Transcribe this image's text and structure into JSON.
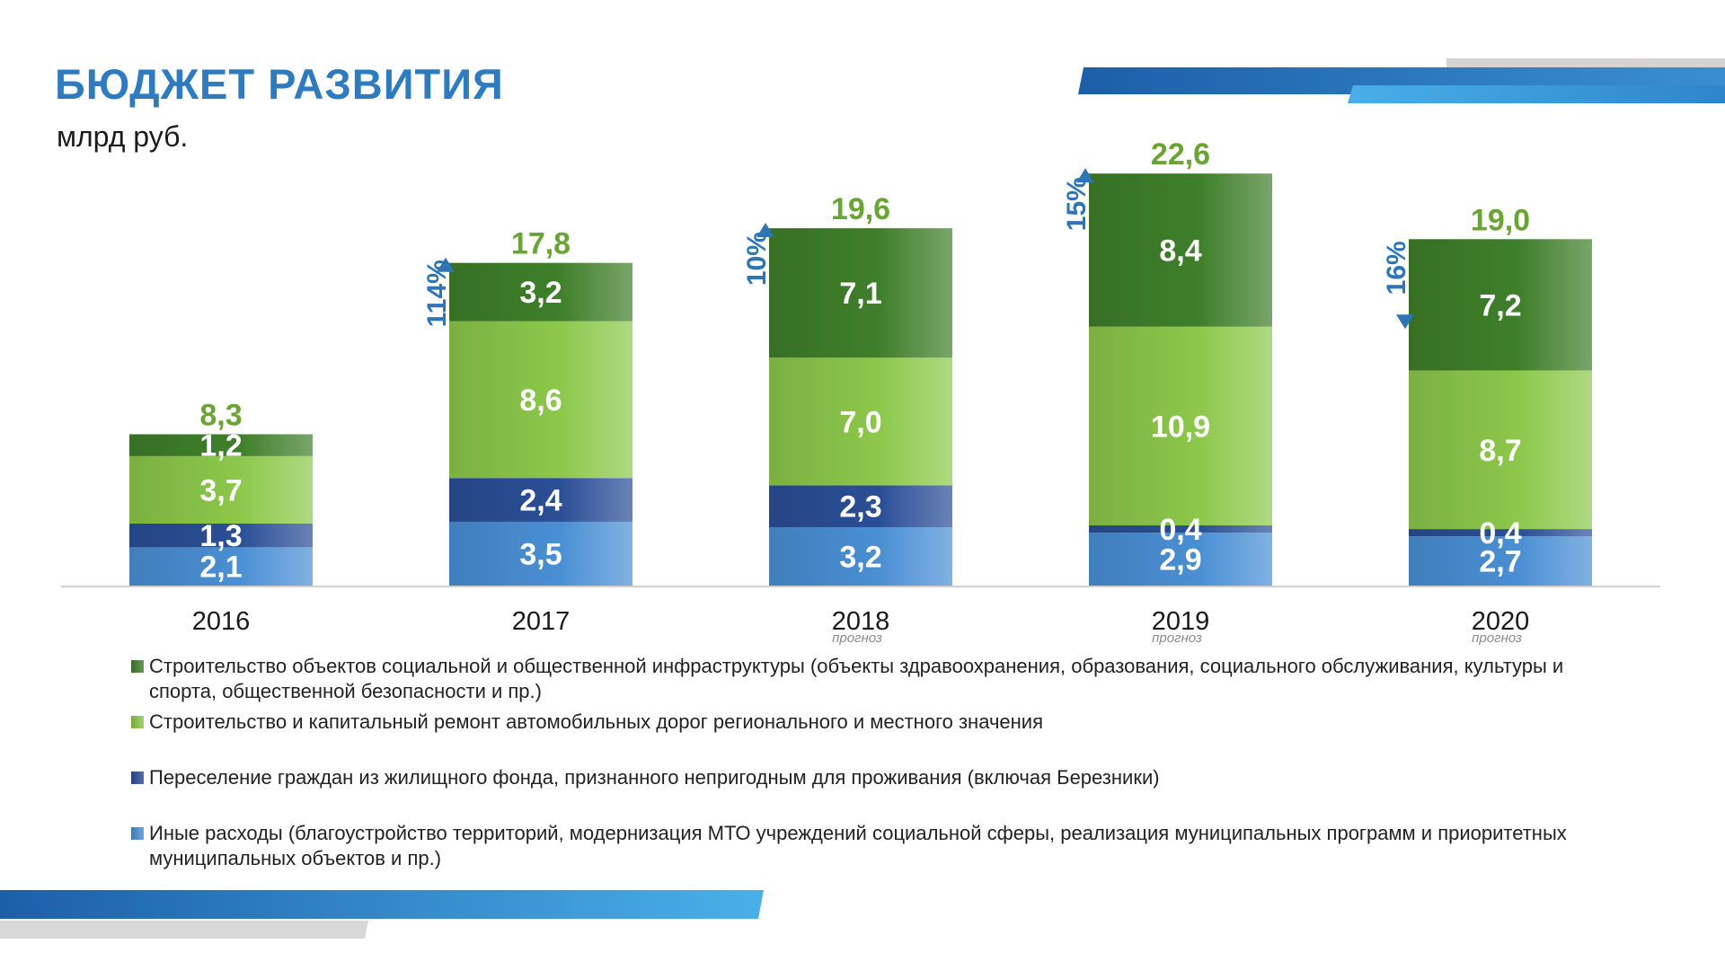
{
  "title": "БЮДЖЕТ РАЗВИТИЯ",
  "unit": "млрд руб.",
  "colors": {
    "title": "#2e7cbf",
    "total_label": "#6aa534",
    "change_label": "#2e75b6",
    "social_infra": "#3f7f2a",
    "roads": "#8cc84b",
    "resettlement": "#2a4e96",
    "other": "#4a8fd4"
  },
  "chart_data": {
    "type": "bar",
    "stacked": true,
    "categories": [
      "2016",
      "2017",
      "2018",
      "2019",
      "2020"
    ],
    "category_notes": [
      "",
      "",
      "прогноз",
      "прогноз",
      "прогноз"
    ],
    "series": [
      {
        "key": "other",
        "name": "Иные расходы (благоустройство территорий, модернизация МТО учреждений социальной сферы, реализация муниципальных программ и приоритетных муниципальных объектов и пр.)",
        "values": [
          2.1,
          3.5,
          3.2,
          2.9,
          2.7
        ],
        "labels": [
          "2,1",
          "3,5",
          "3,2",
          "2,9",
          "2,7"
        ]
      },
      {
        "key": "resettlement",
        "name": "Переселение граждан из жилищного фонда, признанного непригодным для проживания (включая Березники)",
        "values": [
          1.3,
          2.4,
          2.3,
          0.4,
          0.4
        ],
        "labels": [
          "1,3",
          "2,4",
          "2,3",
          "0,4",
          "0,4"
        ]
      },
      {
        "key": "roads",
        "name": "Строительство и капитальный ремонт автомобильных дорог регионального и местного значения",
        "values": [
          3.7,
          8.6,
          7.0,
          10.9,
          8.7
        ],
        "labels": [
          "3,7",
          "8,6",
          "7,0",
          "10,9",
          "8,7"
        ]
      },
      {
        "key": "social_infra",
        "name": "Строительство объектов социальной и общественной инфраструктуры (объекты здравоохранения, образования, социального обслуживания, культуры и спорта, общественной безопасности и пр.)",
        "values": [
          1.2,
          3.2,
          7.1,
          8.4,
          7.2
        ],
        "labels": [
          "1,2",
          "3,2",
          "7,1",
          "8,4",
          "7,2"
        ]
      }
    ],
    "totals": [
      "8,3",
      "17,8",
      "19,6",
      "22,6",
      "19,0"
    ],
    "total_values": [
      8.3,
      17.8,
      19.6,
      22.6,
      19.0
    ],
    "changes": [
      {
        "label": "",
        "direction": ""
      },
      {
        "label": "114%",
        "direction": "up"
      },
      {
        "label": "10%",
        "direction": "up"
      },
      {
        "label": "15%",
        "direction": "up"
      },
      {
        "label": "16%",
        "direction": "down"
      }
    ]
  },
  "legend": [
    {
      "key": "social_infra",
      "text": "Строительство объектов социальной и общественной инфраструктуры (объекты здравоохранения, образования, социального обслуживания, культуры и спорта, общественной безопасности и пр.)"
    },
    {
      "key": "roads",
      "text": "Строительство и капитальный ремонт автомобильных дорог регионального и местного значения"
    },
    {
      "key": "resettlement",
      "text": "Переселение граждан из жилищного фонда, признанного непригодным для проживания (включая Березники)"
    },
    {
      "key": "other",
      "text": "Иные расходы (благоустройство территорий, модернизация МТО учреждений социальной сферы, реализация муниципальных программ и приоритетных муниципальных объектов и пр.)"
    }
  ]
}
